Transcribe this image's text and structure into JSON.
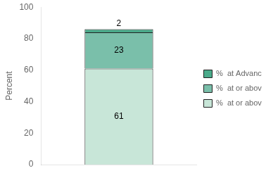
{
  "chart_data": {
    "type": "bar",
    "stacked": true,
    "ylabel": "Percent",
    "categories": [
      null
    ],
    "series": [
      {
        "name": "%  at or above Basic",
        "color": "#c8e6d8",
        "values": [
          61
        ]
      },
      {
        "name": "%  at or above Proficient",
        "color": "#7abfaa",
        "values": [
          23
        ]
      },
      {
        "name": "%  at Advanced",
        "color": "#4aaa8a",
        "values": [
          2
        ]
      }
    ],
    "ylim": [
      0,
      100
    ],
    "yticks": [
      0,
      20,
      40,
      60,
      80,
      100
    ],
    "grid": false,
    "legend": "right",
    "data_labels": true,
    "tick_labels": "y"
  }
}
